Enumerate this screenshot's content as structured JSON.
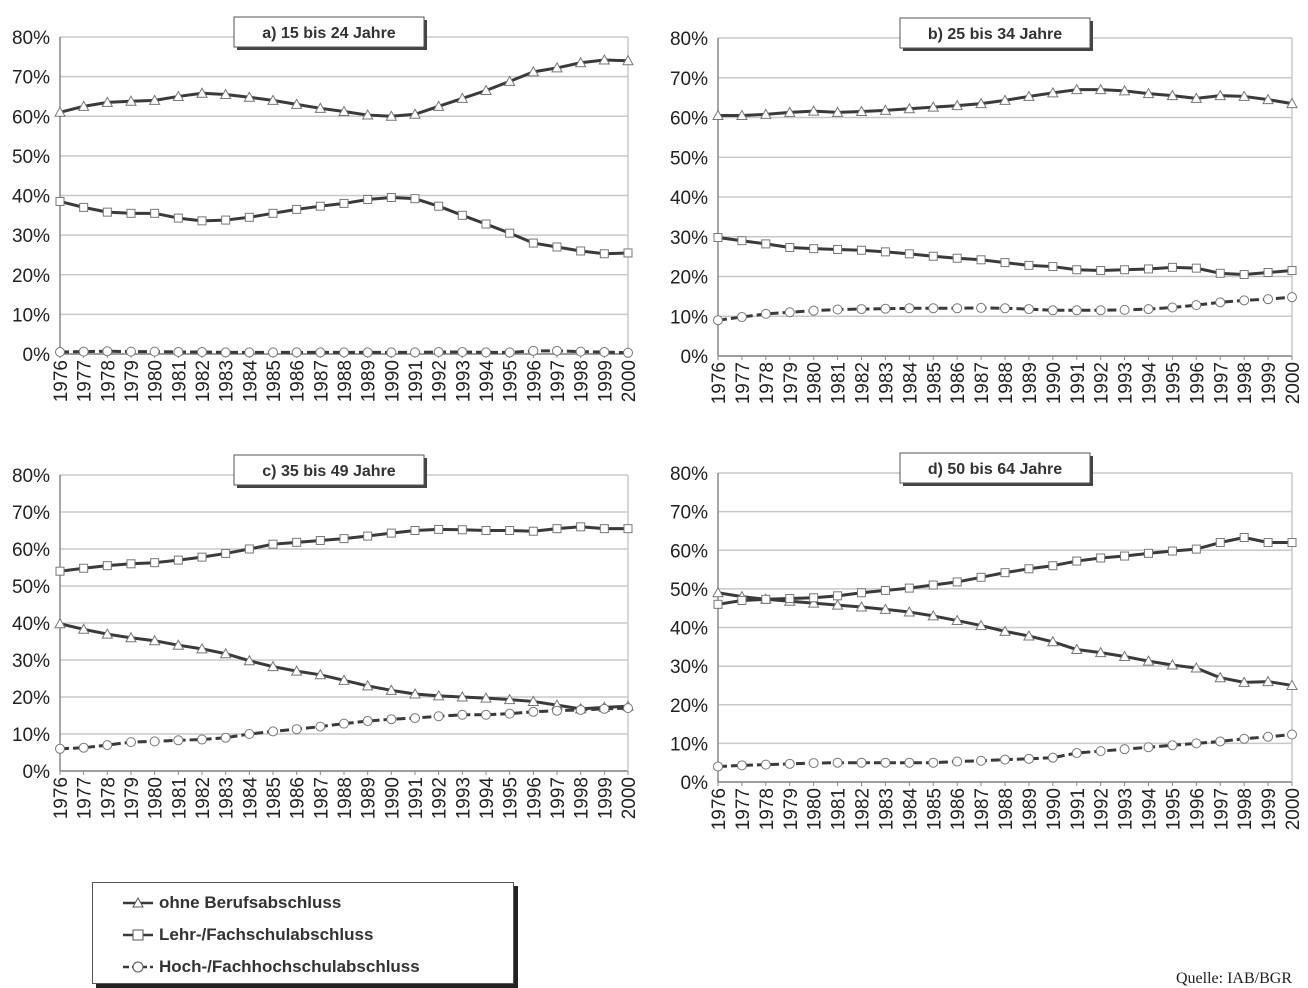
{
  "chart_data": [
    {
      "type": "line",
      "title": "a) 15 bis 24 Jahre",
      "x": [
        "1976",
        "1977",
        "1978",
        "1979",
        "1980",
        "1981",
        "1982",
        "1983",
        "1984",
        "1985",
        "1986",
        "1987",
        "1988",
        "1989",
        "1990",
        "1991",
        "1992",
        "1993",
        "1994",
        "1995",
        "1996",
        "1997",
        "1998",
        "1999",
        "2000"
      ],
      "ylim": [
        0,
        80
      ],
      "yticks": [
        "0%",
        "10%",
        "20%",
        "30%",
        "40%",
        "50%",
        "60%",
        "70%",
        "80%"
      ],
      "grid": true,
      "series": [
        {
          "name": "ohne Berufsabschluss",
          "values": [
            61,
            62.5,
            63.5,
            63.8,
            64,
            65,
            65.8,
            65.5,
            64.8,
            64,
            63,
            62,
            61.2,
            60.3,
            60,
            60.5,
            62.5,
            64.5,
            66.5,
            68.8,
            71.2,
            72.2,
            73.5,
            74.2,
            74
          ]
        },
        {
          "name": "Lehr-/Fachschulabschluss",
          "values": [
            38.5,
            37,
            35.8,
            35.5,
            35.5,
            34.3,
            33.6,
            33.8,
            34.5,
            35.5,
            36.5,
            37.3,
            38,
            39,
            39.5,
            39.2,
            37.3,
            35,
            32.8,
            30.5,
            28,
            27,
            26,
            25.3,
            25.5
          ]
        },
        {
          "name": "Hoch-/Fachhochschulabschluss",
          "values": [
            0.5,
            0.6,
            0.7,
            0.6,
            0.6,
            0.5,
            0.5,
            0.4,
            0.4,
            0.4,
            0.4,
            0.4,
            0.4,
            0.4,
            0.4,
            0.4,
            0.5,
            0.5,
            0.4,
            0.4,
            0.8,
            0.8,
            0.6,
            0.5,
            0.3
          ]
        }
      ]
    },
    {
      "type": "line",
      "title": "b) 25 bis 34 Jahre",
      "x": [
        "1976",
        "1977",
        "1978",
        "1979",
        "1980",
        "1981",
        "1982",
        "1983",
        "1984",
        "1985",
        "1986",
        "1987",
        "1988",
        "1989",
        "1990",
        "1991",
        "1992",
        "1993",
        "1994",
        "1995",
        "1996",
        "1997",
        "1998",
        "1999",
        "2000"
      ],
      "ylim": [
        0,
        80
      ],
      "yticks": [
        "0%",
        "10%",
        "20%",
        "30%",
        "40%",
        "50%",
        "60%",
        "70%",
        "80%"
      ],
      "grid": true,
      "series": [
        {
          "name": "ohne Berufsabschluss",
          "values": [
            60.5,
            60.5,
            60.8,
            61.3,
            61.6,
            61.3,
            61.5,
            61.8,
            62.2,
            62.6,
            63,
            63.5,
            64.3,
            65.3,
            66.2,
            67,
            67,
            66.7,
            66,
            65.5,
            64.8,
            65.5,
            65.3,
            64.5,
            63.5
          ]
        },
        {
          "name": "Lehr-/Fachschulabschluss",
          "values": [
            29.8,
            29,
            28.2,
            27.3,
            27,
            26.8,
            26.6,
            26.2,
            25.7,
            25.1,
            24.6,
            24.2,
            23.5,
            22.8,
            22.5,
            21.7,
            21.5,
            21.7,
            21.9,
            22.3,
            22.1,
            20.8,
            20.5,
            21,
            21.5
          ]
        },
        {
          "name": "Hoch-/Fachhochschulabschluss",
          "values": [
            9,
            9.8,
            10.6,
            11,
            11.4,
            11.7,
            11.8,
            11.9,
            12,
            12,
            12,
            12.1,
            12,
            11.8,
            11.5,
            11.5,
            11.5,
            11.6,
            11.8,
            12.2,
            12.8,
            13.5,
            14,
            14.3,
            14.8
          ]
        }
      ]
    },
    {
      "type": "line",
      "title": "c) 35 bis 49 Jahre",
      "x": [
        "1976",
        "1977",
        "1978",
        "1979",
        "1980",
        "1981",
        "1982",
        "1983",
        "1984",
        "1985",
        "1986",
        "1987",
        "1988",
        "1989",
        "1990",
        "1991",
        "1992",
        "1993",
        "1994",
        "1995",
        "1996",
        "1997",
        "1998",
        "1999",
        "2000"
      ],
      "ylim": [
        0,
        80
      ],
      "yticks": [
        "0%",
        "10%",
        "20%",
        "30%",
        "40%",
        "50%",
        "60%",
        "70%",
        "80%"
      ],
      "grid": true,
      "series": [
        {
          "name": "ohne Berufsabschluss",
          "values": [
            39.8,
            38.3,
            37,
            36,
            35.2,
            34,
            33,
            31.7,
            29.8,
            28.2,
            27,
            26,
            24.5,
            23,
            21.8,
            20.8,
            20.3,
            20,
            19.7,
            19.3,
            18.8,
            17.8,
            16.8,
            17.2,
            17.5
          ]
        },
        {
          "name": "Lehr-/Fachschulabschluss",
          "values": [
            54,
            54.8,
            55.5,
            56,
            56.3,
            57,
            57.8,
            58.8,
            60,
            61.3,
            61.8,
            62.3,
            62.8,
            63.5,
            64.3,
            65,
            65.3,
            65.2,
            65,
            65,
            64.8,
            65.5,
            66,
            65.5,
            65.5
          ]
        },
        {
          "name": "Hoch-/Fachhochschulabschluss",
          "values": [
            6,
            6.3,
            7,
            7.8,
            8,
            8.3,
            8.5,
            9,
            10,
            10.7,
            11.3,
            12,
            12.8,
            13.5,
            14,
            14.3,
            14.8,
            15.2,
            15.2,
            15.5,
            16,
            16.3,
            16.5,
            16.8,
            17
          ]
        }
      ]
    },
    {
      "type": "line",
      "title": "d) 50 bis 64 Jahre",
      "x": [
        "1976",
        "1977",
        "1978",
        "1979",
        "1980",
        "1981",
        "1982",
        "1983",
        "1984",
        "1985",
        "1986",
        "1987",
        "1988",
        "1989",
        "1990",
        "1991",
        "1992",
        "1993",
        "1994",
        "1995",
        "1996",
        "1997",
        "1998",
        "1999",
        "2000"
      ],
      "ylim": [
        0,
        80
      ],
      "yticks": [
        "0%",
        "10%",
        "20%",
        "30%",
        "40%",
        "50%",
        "60%",
        "70%",
        "80%"
      ],
      "grid": true,
      "series": [
        {
          "name": "ohne Berufsabschluss",
          "values": [
            49,
            48,
            47.3,
            46.8,
            46.3,
            45.8,
            45.3,
            44.7,
            44,
            43,
            41.8,
            40.5,
            39,
            37.8,
            36.3,
            34.3,
            33.5,
            32.5,
            31.3,
            30.3,
            29.5,
            27,
            25.8,
            26,
            25
          ]
        },
        {
          "name": "Lehr-/Fachschulabschluss",
          "values": [
            46,
            47,
            47.3,
            47.5,
            47.7,
            48.2,
            49,
            49.6,
            50.2,
            51,
            51.8,
            53,
            54.2,
            55.2,
            56,
            57.2,
            58,
            58.5,
            59.2,
            59.8,
            60.3,
            62,
            63.3,
            62,
            62
          ]
        },
        {
          "name": "Hoch-/Fachhochschulabschluss",
          "values": [
            4,
            4.3,
            4.5,
            4.7,
            4.9,
            5,
            5,
            5,
            5,
            5,
            5.3,
            5.5,
            5.8,
            6,
            6.3,
            7.5,
            8,
            8.5,
            9,
            9.5,
            10,
            10.5,
            11.2,
            11.7,
            12.3
          ]
        }
      ]
    }
  ],
  "legend": {
    "items": [
      "ohne Berufsabschluss",
      "Lehr-/Fachschulabschluss",
      "Hoch-/Fachhochschulabschluss"
    ]
  },
  "source": "Quelle: IAB/BGR",
  "colors": {
    "line": "#3a3a3a",
    "grid": "#c8c8c8",
    "axis": "#888888",
    "marker_fill": "#ffffff"
  }
}
